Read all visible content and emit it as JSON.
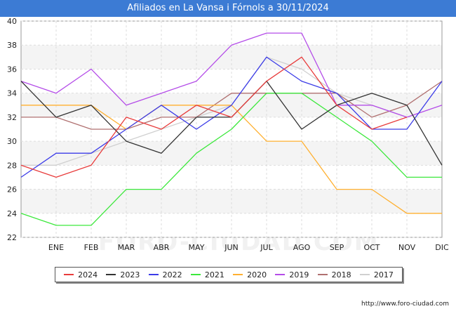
{
  "title": "Afiliados en La Vansa i Fórnols a 30/11/2024",
  "source": "http://www.foro-ciudad.com",
  "watermark": "FORO-CIUDAD.COM",
  "chart_data": {
    "type": "line",
    "title": "Afiliados en La Vansa i Fórnols a 30/11/2024",
    "xlabel": "",
    "ylabel": "",
    "categories": [
      "",
      "ENE",
      "FEB",
      "MAR",
      "ABR",
      "MAY",
      "JUN",
      "JUL",
      "AGO",
      "SEP",
      "OCT",
      "NOV",
      "DIC"
    ],
    "ylim": [
      22,
      40
    ],
    "yticks": [
      22,
      24,
      26,
      28,
      30,
      32,
      34,
      36,
      38,
      40
    ],
    "grid": true,
    "legend_position": "bottom",
    "series": [
      {
        "name": "2024",
        "color": "#e83c3c",
        "values": [
          28,
          27,
          28,
          32,
          31,
          33,
          32,
          35,
          37,
          33,
          31,
          32,
          null
        ]
      },
      {
        "name": "2023",
        "color": "#333333",
        "values": [
          35,
          32,
          33,
          30,
          29,
          32,
          32,
          35,
          31,
          33,
          34,
          33,
          28
        ]
      },
      {
        "name": "2022",
        "color": "#3c3ce8",
        "values": [
          27,
          29,
          29,
          31,
          33,
          31,
          33,
          37,
          35,
          34,
          31,
          31,
          35
        ]
      },
      {
        "name": "2021",
        "color": "#3ce83c",
        "values": [
          24,
          23,
          23,
          26,
          26,
          29,
          31,
          34,
          34,
          32,
          30,
          27,
          27
        ]
      },
      {
        "name": "2020",
        "color": "#ffb030",
        "values": [
          33,
          33,
          33,
          31,
          33,
          33,
          33,
          30,
          30,
          26,
          26,
          24,
          24
        ]
      },
      {
        "name": "2019",
        "color": "#b44ce8",
        "values": [
          35,
          34,
          36,
          33,
          34,
          35,
          38,
          39,
          39,
          33,
          33,
          32,
          33
        ]
      },
      {
        "name": "2018",
        "color": "#b07070",
        "values": [
          32,
          32,
          31,
          31,
          32,
          32,
          34,
          34,
          34,
          34,
          32,
          33,
          35
        ]
      },
      {
        "name": "2017",
        "color": "#d0d0d0",
        "values": [
          28,
          28,
          29,
          30,
          31,
          32,
          33,
          37,
          36,
          34,
          33,
          32,
          null
        ]
      }
    ]
  }
}
